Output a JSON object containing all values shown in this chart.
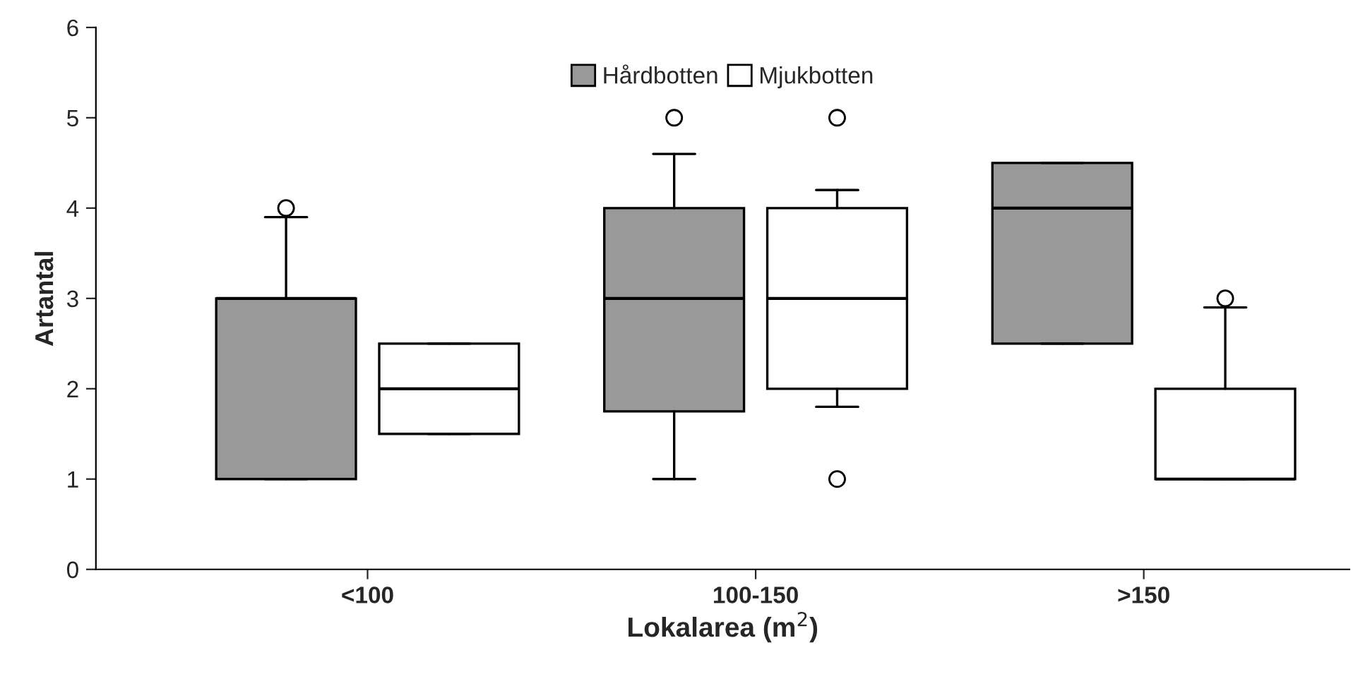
{
  "chart_data": {
    "type": "box",
    "xlabel": "Lokalarea (m$^{2}$)",
    "ylabel": "Artantal",
    "categories": [
      "<100",
      "100-150",
      ">150"
    ],
    "ylim": [
      0,
      6
    ],
    "yticks": [
      0,
      1,
      2,
      3,
      4,
      5,
      6
    ],
    "grid": false,
    "legend": "top",
    "series": [
      {
        "name": "Hårdbotten",
        "color": "#999999",
        "boxes": [
          {
            "low": 1,
            "q1": 1,
            "median": 3,
            "q3": 3,
            "high": 3.9,
            "outliers": [
              4
            ]
          },
          {
            "low": 1,
            "q1": 1.75,
            "median": 3,
            "q3": 4,
            "high": 4.6,
            "outliers": [
              5
            ]
          },
          {
            "low": 2.5,
            "q1": 2.5,
            "median": 4,
            "q3": 4.5,
            "high": 4.5
          }
        ]
      },
      {
        "name": "Mjukbotten",
        "color": "#ffffff",
        "boxes": [
          {
            "low": 1.5,
            "q1": 1.5,
            "median": 2,
            "q3": 2.5,
            "high": 2.5
          },
          {
            "low": 1.8,
            "q1": 2,
            "median": 3,
            "q3": 4,
            "high": 4.2,
            "outliers": [
              5,
              1
            ]
          },
          {
            "low": 1,
            "q1": 1,
            "median": 1,
            "q3": 2,
            "high": 2.9,
            "outliers": [
              3
            ]
          }
        ]
      }
    ]
  }
}
